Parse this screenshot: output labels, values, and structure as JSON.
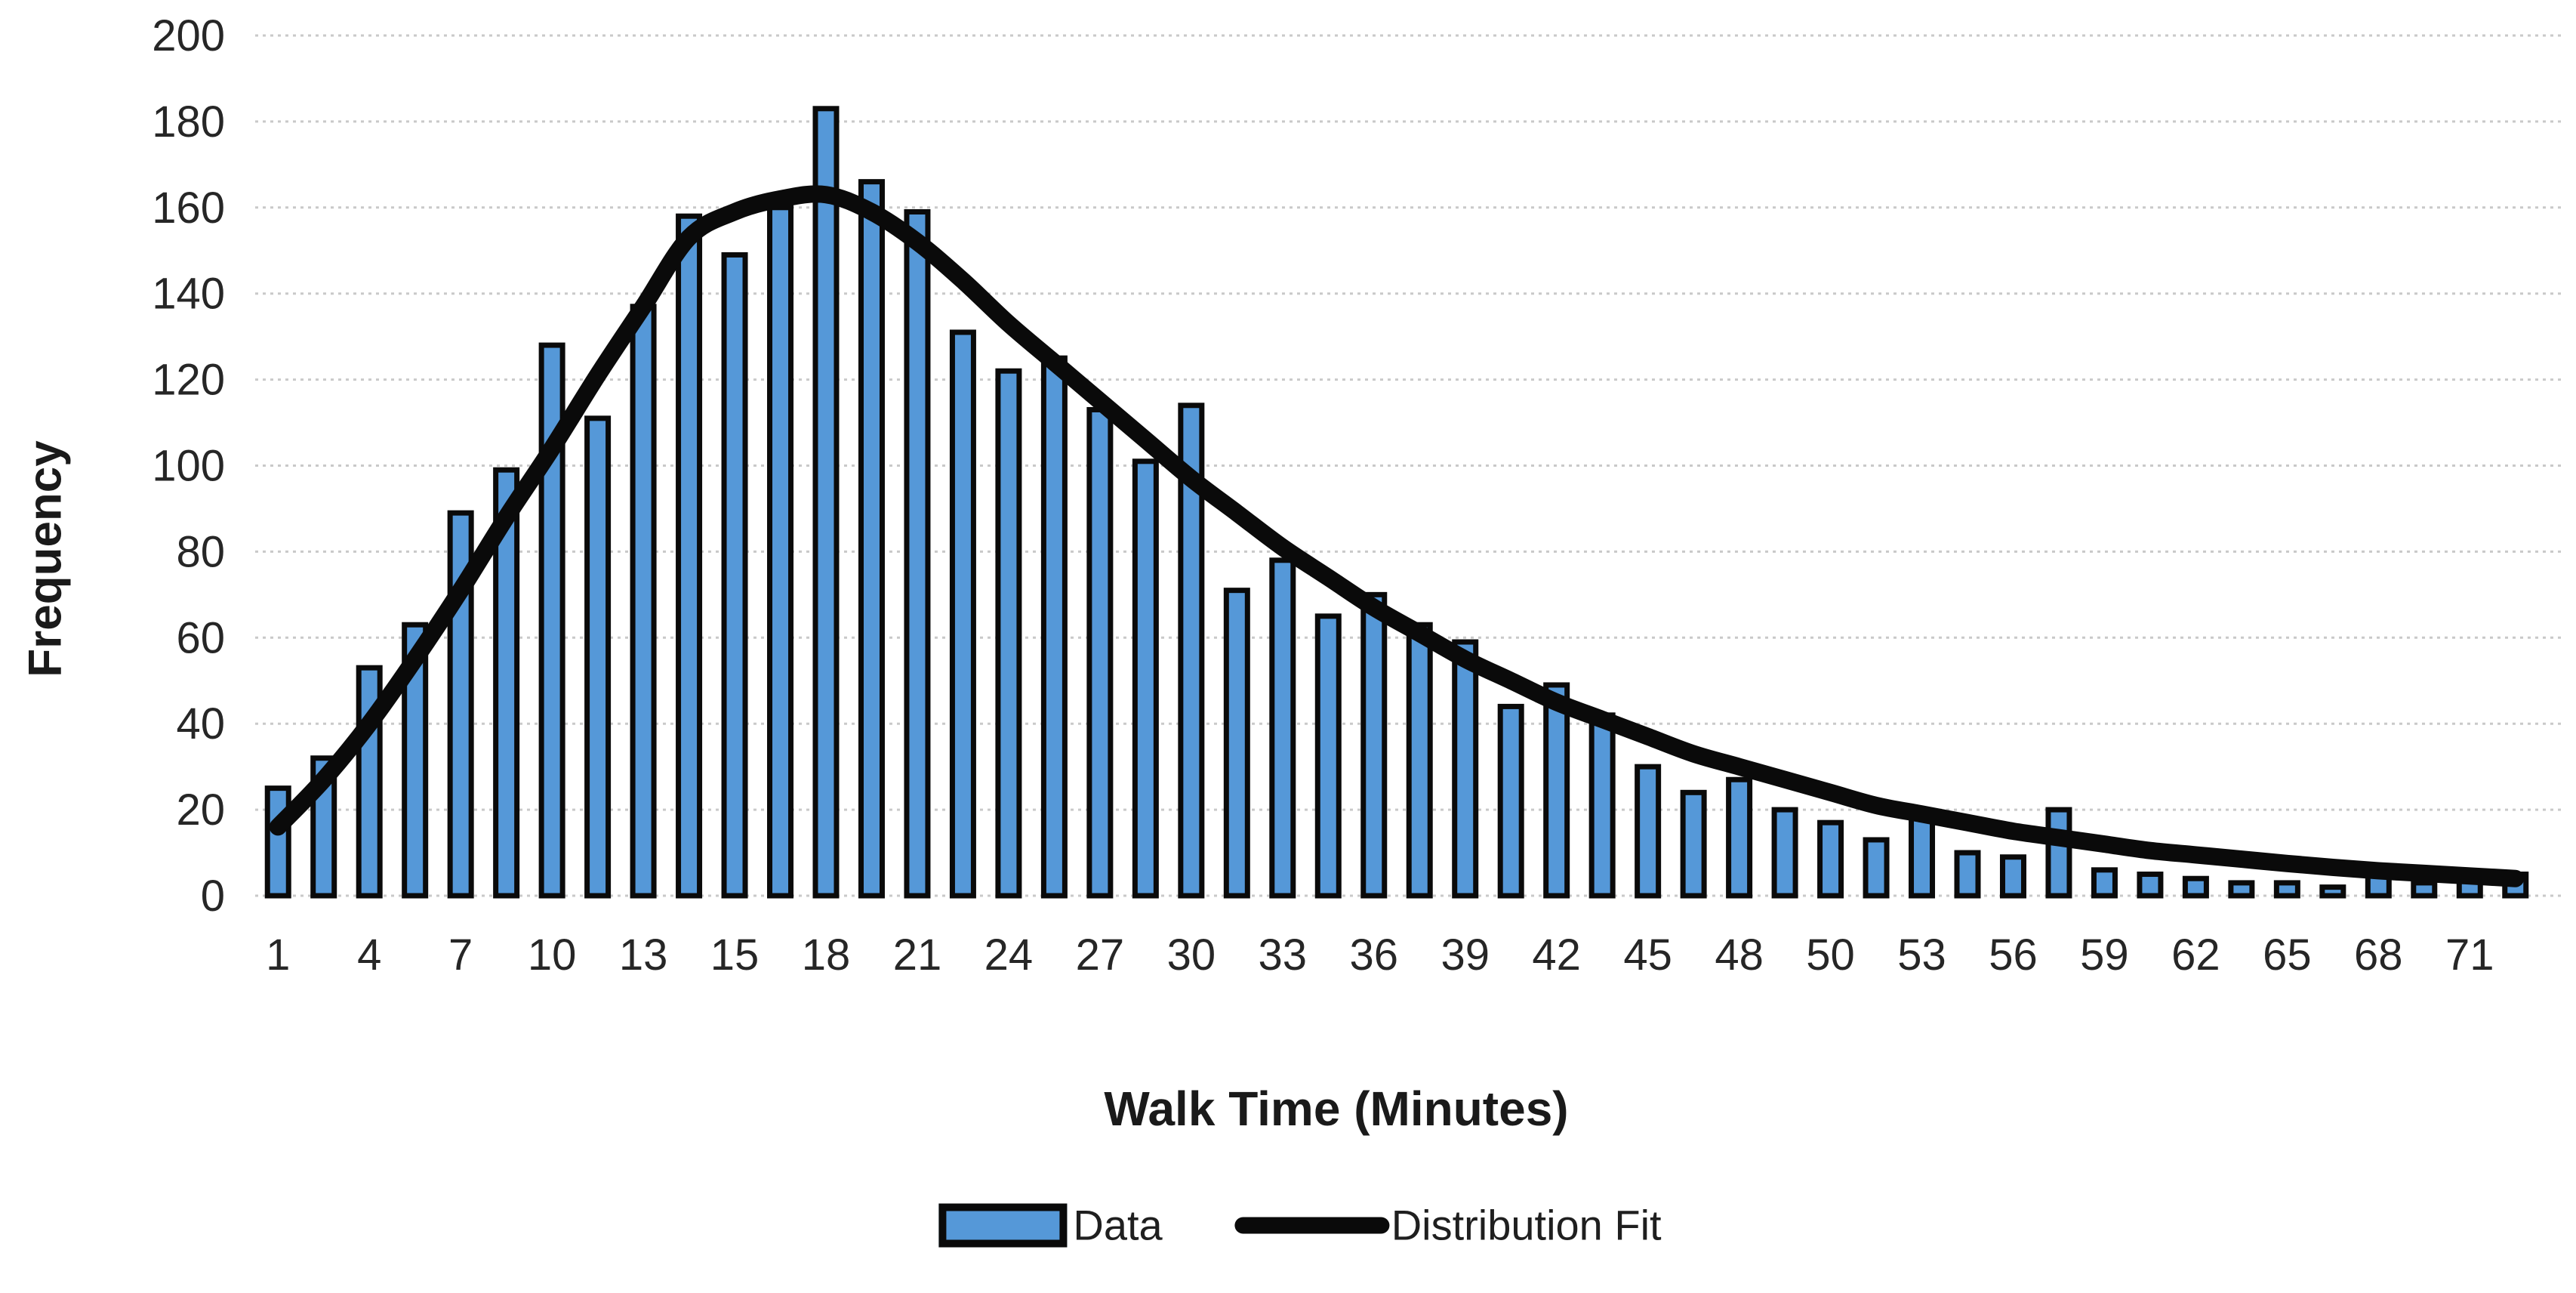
{
  "chart_data": {
    "type": "bar",
    "title": "",
    "xlabel": "Walk Time (Minutes)",
    "ylabel": "Frequency",
    "ylim": [
      0,
      200
    ],
    "y_ticks": [
      0,
      20,
      40,
      60,
      80,
      100,
      120,
      140,
      160,
      180,
      200
    ],
    "grid": "horizontal-dotted",
    "legend_position": "bottom-center",
    "x_tick_labels": [
      "1",
      "4",
      "7",
      "10",
      "13",
      "15",
      "18",
      "21",
      "24",
      "27",
      "30",
      "33",
      "36",
      "39",
      "42",
      "45",
      "48",
      "50",
      "53",
      "56",
      "59",
      "62",
      "65",
      "68",
      "71"
    ],
    "x_tick_bar_indices": [
      0,
      2,
      4,
      6,
      8,
      10,
      12,
      14,
      16,
      18,
      20,
      22,
      24,
      26,
      28,
      30,
      32,
      34,
      36,
      38,
      40,
      42,
      44,
      46,
      48
    ],
    "series": [
      {
        "name": "Data",
        "type": "bar",
        "color": "#5598d8",
        "border_color": "#0a0a0a",
        "values": [
          25,
          32,
          53,
          63,
          89,
          99,
          128,
          111,
          137,
          158,
          149,
          160,
          183,
          166,
          159,
          131,
          122,
          125,
          113,
          101,
          114,
          71,
          78,
          65,
          70,
          63,
          59,
          44,
          49,
          42,
          30,
          24,
          27,
          20,
          17,
          13,
          18,
          10,
          9,
          20,
          6,
          5,
          4,
          3,
          3,
          2,
          7,
          3,
          4,
          5
        ]
      },
      {
        "name": "Distribution Fit",
        "type": "line",
        "color": "#0a0a0a",
        "values": [
          16,
          27,
          40,
          55,
          71,
          88,
          104,
          121,
          137,
          153,
          159,
          162,
          163,
          159,
          152,
          143,
          133,
          124,
          115,
          106,
          97,
          89,
          81,
          74,
          67,
          61,
          55,
          50,
          45,
          41,
          37,
          33,
          30,
          27,
          24,
          21,
          19,
          17,
          15,
          13.5,
          12,
          10.5,
          9.5,
          8.5,
          7.5,
          6.6,
          5.8,
          5.2,
          4.6,
          4
        ]
      }
    ]
  },
  "style": {
    "grid_color": "#c9c9c9",
    "tick_label_color": "#262626",
    "axis_title_color": "#1a1a1a",
    "background": "#ffffff"
  }
}
